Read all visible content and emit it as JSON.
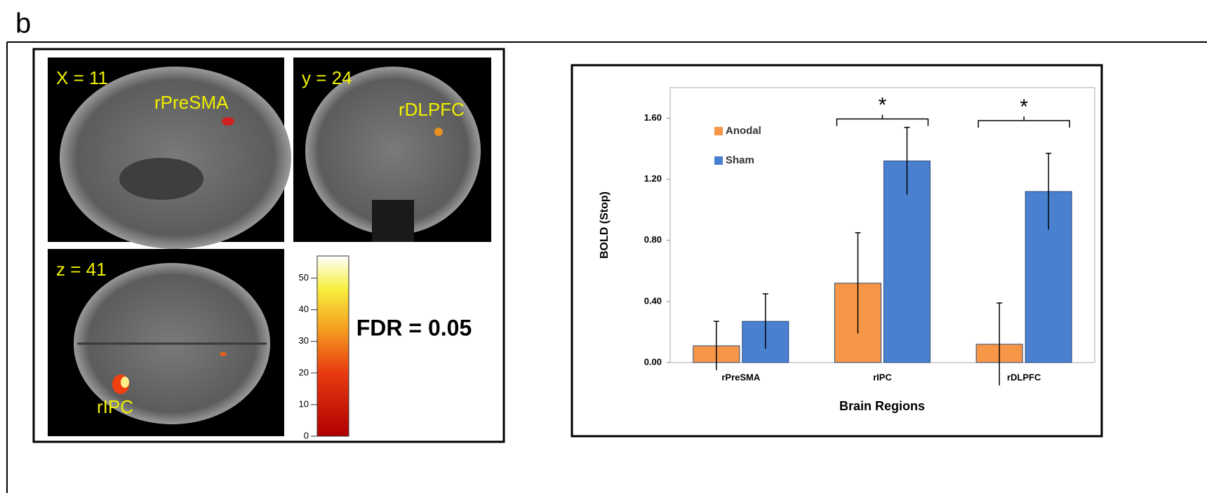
{
  "panel_label": "b",
  "brain_panel": {
    "views": [
      {
        "label": "X = 11",
        "region": "rPreSMA"
      },
      {
        "label": "y = 24",
        "region": "rDLPFC"
      },
      {
        "label": "z = 41",
        "region": "rIPC"
      }
    ],
    "colorbar": {
      "lim": [
        0,
        57
      ],
      "ticks": [
        0,
        10,
        20,
        30,
        40,
        50
      ]
    },
    "threshold": "FDR = 0.05"
  },
  "chart_data": {
    "type": "bar",
    "y_label": "BOLD (Stop)",
    "x_label": "Brain Regions",
    "categories": [
      "rPreSMA",
      "rIPC",
      "rDLPFC"
    ],
    "series": [
      {
        "name": "Anodal",
        "color": "#f79646",
        "values": [
          0.11,
          0.52,
          0.12
        ],
        "errors": [
          0.16,
          0.33,
          0.27
        ]
      },
      {
        "name": "Sham",
        "color": "#4a80d0",
        "values": [
          0.27,
          1.32,
          1.12
        ],
        "errors": [
          0.18,
          0.22,
          0.25
        ]
      }
    ],
    "ylim": [
      0,
      1.8
    ],
    "yticks": [
      {
        "value": 0,
        "label": "0.00"
      },
      {
        "value": 0.4,
        "label": "0.40"
      },
      {
        "value": 0.8,
        "label": "0.80"
      },
      {
        "value": 1.2,
        "label": "1.20"
      },
      {
        "value": 1.6,
        "label": "1.60"
      }
    ],
    "annotations": [
      {
        "text": "*",
        "category": "rIPC"
      },
      {
        "text": "*",
        "category": "rDLPFC"
      }
    ],
    "legend": "upper left",
    "grid": false
  }
}
